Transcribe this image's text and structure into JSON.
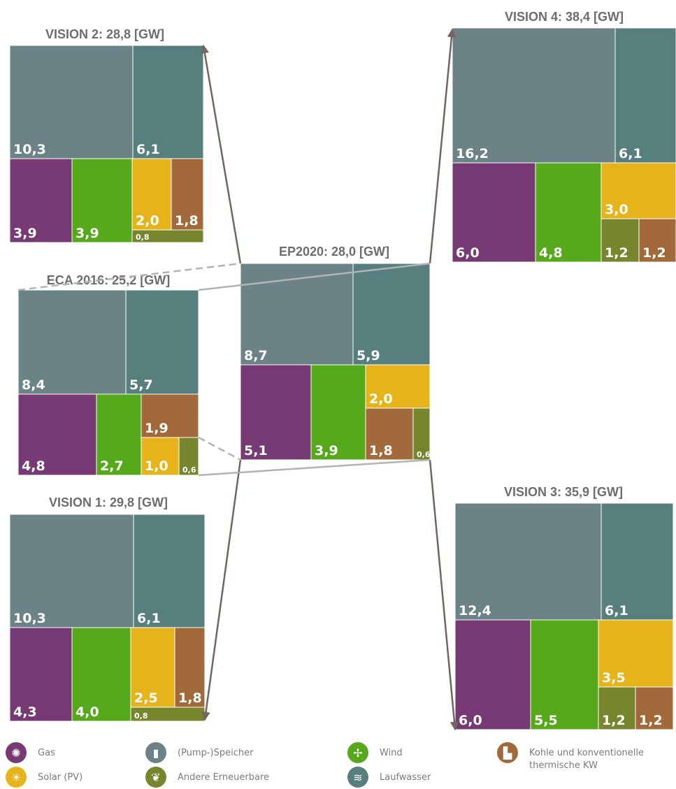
{
  "colors": {
    "speicher": "#6b8287",
    "laufwasser": "#567f7d",
    "gas": "#773a74",
    "wind": "#55a91a",
    "solar": "#e6b41a",
    "kohle": "#a26a3a",
    "andere": "#77862d",
    "arrow": "#74655e",
    "bracket": "#b3b3b3"
  },
  "legend": [
    {
      "key": "gas",
      "label": "Gas",
      "icon": "fan-icon",
      "glyph": "✺"
    },
    {
      "key": "speicher",
      "label": "(Pump-)Speicher",
      "icon": "battery-drop-icon",
      "glyph": "▮"
    },
    {
      "key": "wind",
      "label": "Wind",
      "icon": "wind-turbine-icon",
      "glyph": "✢"
    },
    {
      "key": "kohle",
      "label": "Kohle und konventionelle\nthermische KW",
      "icon": "factory-icon",
      "glyph": "▙"
    },
    {
      "key": "solar",
      "label": "Solar (PV)",
      "icon": "sun-icon",
      "glyph": "☀"
    },
    {
      "key": "andere",
      "label": "Andere Erneuerbare",
      "icon": "leaf-icon",
      "glyph": "❦"
    },
    {
      "key": "laufwasser",
      "label": "Laufwasser",
      "icon": "waves-icon",
      "glyph": "≋"
    }
  ],
  "chart_data": [
    {
      "type": "treemap",
      "id": "vision2",
      "title": "VISION 2: 28,8 [GW]",
      "values": {
        "speicher": "10,3",
        "laufwasser": "6,1",
        "gas": "3,9",
        "wind": "3,9",
        "solar": "2,0",
        "kohle": "1,8",
        "andere": "0,8"
      }
    },
    {
      "type": "treemap",
      "id": "vision4",
      "title": "VISION 4: 38,4 [GW]",
      "values": {
        "speicher": "16,2",
        "laufwasser": "6,1",
        "gas": "6,0",
        "wind": "4,8",
        "solar": "3,0",
        "andere": "1,2",
        "kohle": "1,2"
      }
    },
    {
      "type": "treemap",
      "id": "eca2016",
      "title": "ECA 2016: 25,2 [GW]",
      "values": {
        "speicher": "8,4",
        "laufwasser": "5,7",
        "gas": "4,8",
        "wind": "2,7",
        "kohle": "1,9",
        "solar": "1,0",
        "andere": "0,6"
      }
    },
    {
      "type": "treemap",
      "id": "ep2020",
      "title": "EP2020: 28,0 [GW]",
      "values": {
        "speicher": "8,7",
        "laufwasser": "5,9",
        "gas": "5,1",
        "wind": "3,9",
        "solar": "2,0",
        "kohle": "1,8",
        "andere": "0,6"
      }
    },
    {
      "type": "treemap",
      "id": "vision1",
      "title": "VISION 1: 29,8 [GW]",
      "values": {
        "speicher": "10,3",
        "laufwasser": "6,1",
        "gas": "4,3",
        "wind": "4,0",
        "solar": "2,5",
        "kohle": "1,8",
        "andere": "0,8"
      }
    },
    {
      "type": "treemap",
      "id": "vision3",
      "title": "VISION 3: 35,9 [GW]",
      "values": {
        "speicher": "12,4",
        "laufwasser": "6,1",
        "gas": "6,0",
        "wind": "5,5",
        "solar": "3,5",
        "andere": "1,2",
        "kohle": "1,2"
      }
    }
  ]
}
